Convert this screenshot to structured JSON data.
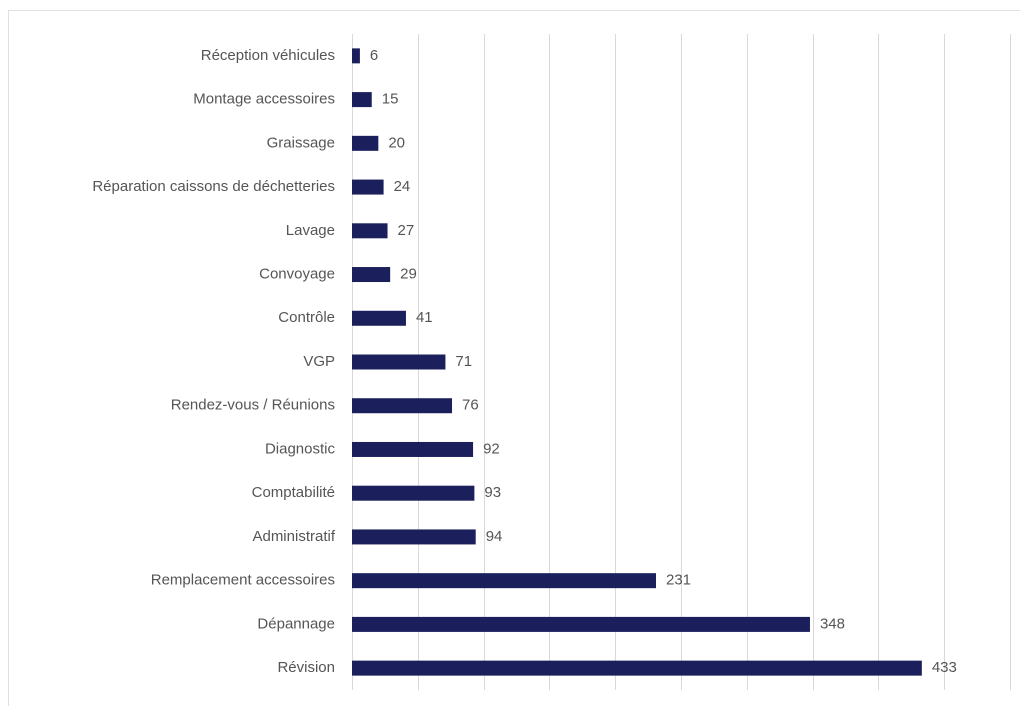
{
  "chart_data": {
    "type": "bar",
    "orientation": "horizontal",
    "categories": [
      "Réception véhicules",
      "Montage accessoires",
      "Graissage",
      "Réparation caissons de déchetteries",
      "Lavage",
      "Convoyage",
      "Contrôle",
      "VGP",
      "Rendez-vous / Réunions",
      "Diagnostic",
      "Comptabilité",
      "Administratif",
      "Remplacement accessoires",
      "Dépannage",
      "Révision"
    ],
    "values": [
      6,
      15,
      20,
      24,
      27,
      29,
      41,
      71,
      76,
      92,
      93,
      94,
      231,
      348,
      433
    ],
    "color": "#1b1f5c",
    "xlim": [
      0,
      500
    ],
    "xticks": [
      0,
      50,
      100,
      150,
      200,
      250,
      300,
      350,
      400,
      450,
      500
    ],
    "grid": true
  }
}
